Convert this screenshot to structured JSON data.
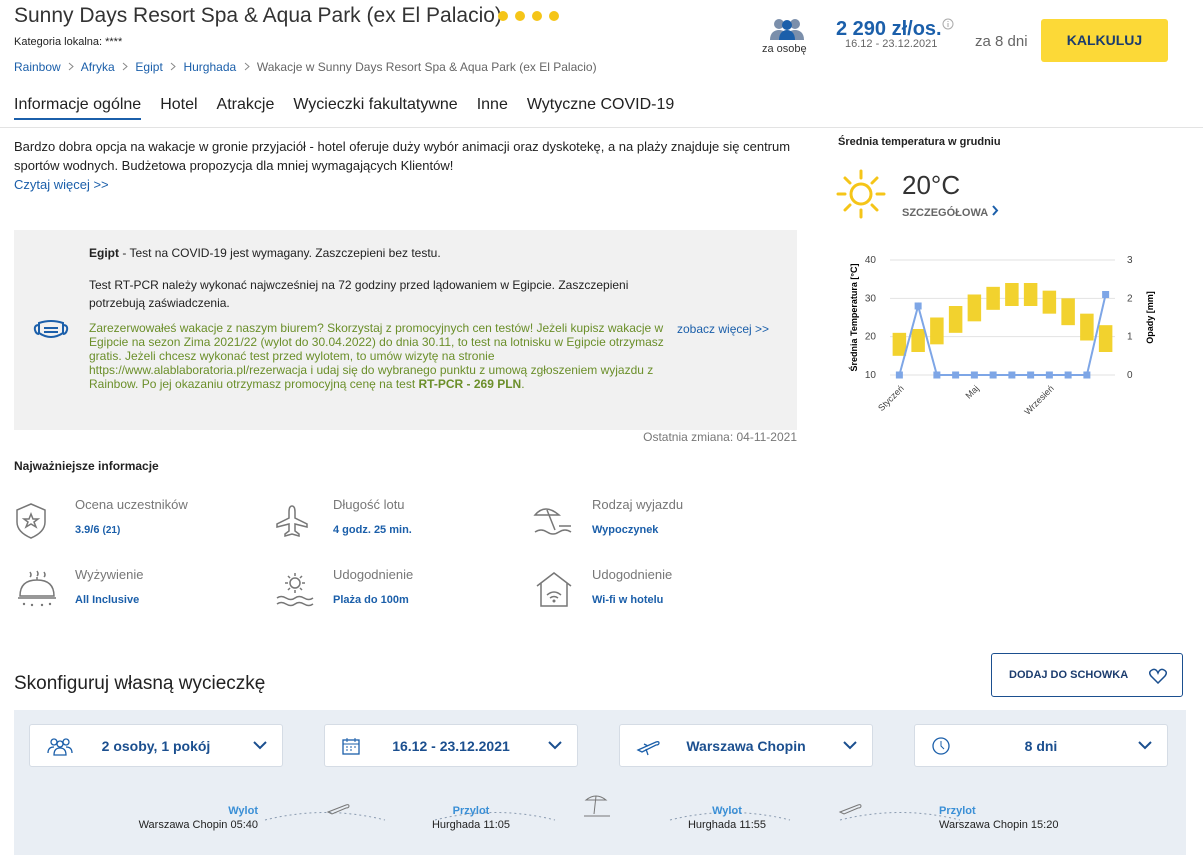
{
  "header": {
    "title": "Sunny Days Resort Spa & Aqua Park (ex El Palacio)",
    "category": "Kategoria lokalna: ****",
    "breadcrumbs": [
      "Rainbow",
      "Afryka",
      "Egipt",
      "Hurghada",
      "Wakacje w Sunny Days Resort Spa & Aqua Park (ex El Palacio)"
    ],
    "per_person": "za osobę",
    "price": "2 290 zł/os.",
    "dates": "16.12 - 23.12.2021",
    "duration": "za 8 dni",
    "button": "KALKULUJ"
  },
  "tabs": [
    "Informacje ogólne",
    "Hotel",
    "Atrakcje",
    "Wycieczki fakultatywne",
    "Inne",
    "Wytyczne COVID-19"
  ],
  "description": {
    "text": "Bardzo dobra opcja na wakacje w gronie przyjaciół - hotel oferuje duży wybór animacji oraz dyskotekę, a na plaży znajduje się centrum sportów wodnych. Budżetowa propozycja dla mniej wymagających Klientów!",
    "more": "Czytaj więcej >>"
  },
  "covid": {
    "country": "Egipt",
    "line1": " - Test na COVID-19 jest wymagany. Zaszczepieni bez testu.",
    "line2": "Test RT-PCR należy wykonać najwcześniej na 72 godziny przed lądowaniem w Egipcie. Zaszczepieni potrzebują zaświadczenia.",
    "promo": "Zarezerwowałeś wakacje z naszym biurem? Skorzystaj z promocyjnych cen testów! Jeżeli kupisz wakacje w Egipcie na sezon Zima 2021/22 (wylot do 30.04.2022) do dnia 30.11, to test na lotnisku w Egipcie otrzymasz gratis. Jeżeli chcesz wykonać test przed wylotem, to umów wizytę na stronie https://www.alablaboratoria.pl/rezerwacja i udaj się do wybranego punktu z umową zgłoszeniem wyjazdu z Rainbow. Po jej okazaniu otrzymasz promocyjną cenę na test ",
    "promo_bold": "RT-PCR - 269 PLN",
    "promo_end": ".",
    "more": "zobacz więcej >>",
    "updated": "Ostatnia zmiana: 04-11-2021"
  },
  "weather": {
    "title": "Średnia temperatura w grudniu",
    "temperature": "20°C",
    "details": "SZCZEGÓŁOWA"
  },
  "climate_chart": {
    "type": "floating-bar-line",
    "categories": [
      "Styczeń",
      null,
      null,
      null,
      "Maj",
      null,
      null,
      null,
      "Wrzesień",
      null,
      null,
      null
    ],
    "temperature": {
      "low": [
        15,
        16,
        18,
        21,
        24,
        27,
        28,
        28,
        26,
        23,
        19,
        16
      ],
      "high": [
        21,
        22,
        25,
        28,
        31,
        33,
        34,
        34,
        32,
        30,
        26,
        23
      ],
      "color": "#f2d22e"
    },
    "precipitation": {
      "values": [
        0,
        1.8,
        0,
        0,
        0,
        0,
        0,
        0,
        0,
        0,
        0,
        2.1
      ],
      "color": "#7ea6e6"
    },
    "ylim": [
      10,
      40
    ],
    "yticks": [
      10,
      20,
      30,
      40
    ],
    "y2lim": [
      0,
      3
    ],
    "y2ticks": [
      0,
      1,
      2,
      3
    ],
    "grid": true,
    "ylabel": "Średnia Temperatura [°C]",
    "y2label": "Opady [mm]"
  },
  "info": {
    "title": "Najważniejsze informacje",
    "items": [
      {
        "label": "Ocena uczestników",
        "value": "3.9/6",
        "count": "(21)"
      },
      {
        "label": "Długość lotu",
        "value": "4 godz. 25 min."
      },
      {
        "label": "Rodzaj wyjazdu",
        "value": "Wypoczynek"
      },
      {
        "label": "Wyżywienie",
        "value": "All Inclusive"
      },
      {
        "label": "Udogodnienie",
        "value": "Plaża do 100m"
      },
      {
        "label": "Udogodnienie",
        "value": "Wi-fi w hotelu"
      }
    ]
  },
  "configure": {
    "title": "Skonfiguruj własną wycieczkę",
    "save": "DODAJ DO SCHOWKA",
    "selectors": [
      "2 osoby, 1 pokój",
      "16.12 - 23.12.2021",
      "Warszawa Chopin",
      "8 dni"
    ],
    "flights": [
      {
        "label": "Wylot",
        "place": "Warszawa Chopin 05:40"
      },
      {
        "label": "Przylot",
        "place": "Hurghada 11:05"
      },
      {
        "label": "Wylot",
        "place": "Hurghada 11:55"
      },
      {
        "label": "Przylot",
        "place": "Warszawa Chopin 15:20"
      }
    ]
  }
}
